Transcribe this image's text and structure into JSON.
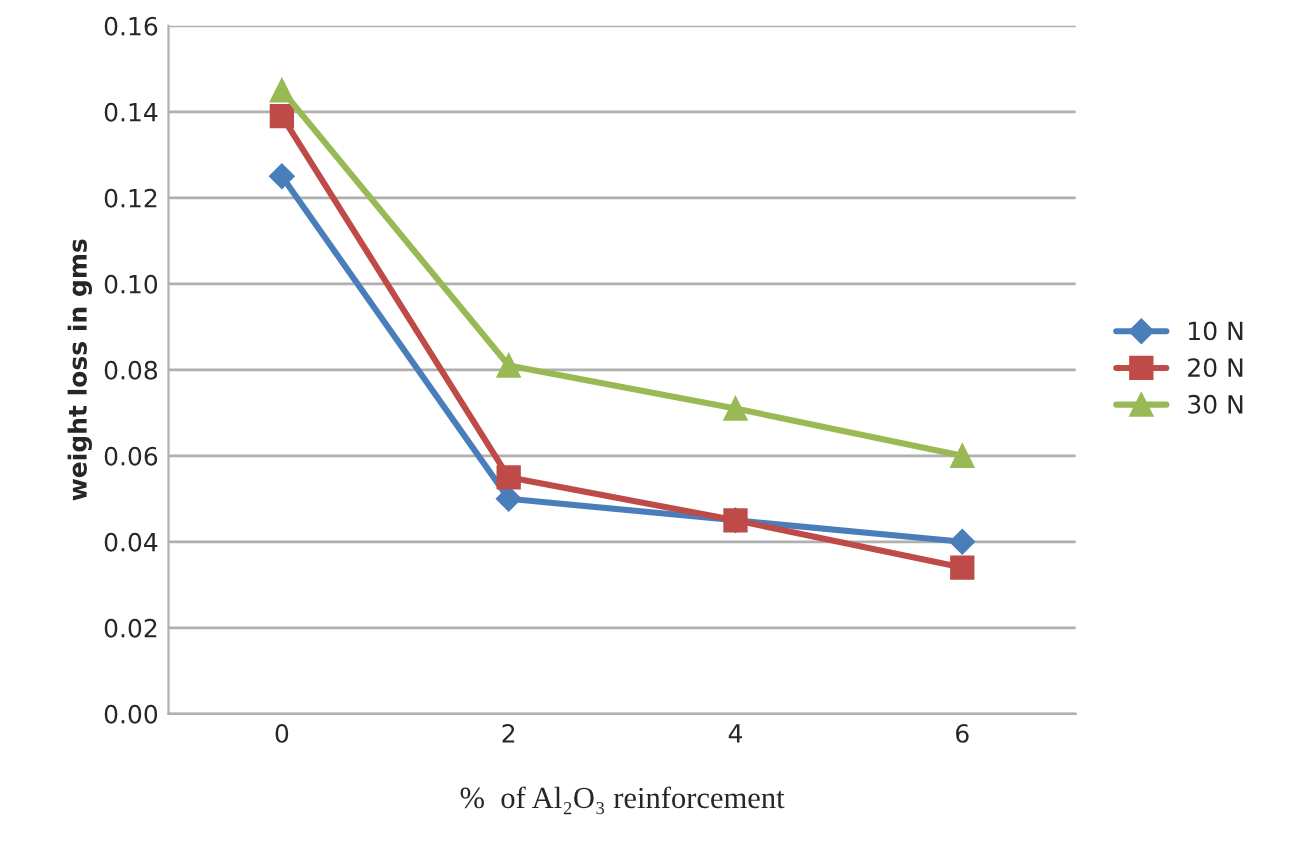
{
  "chart_data": {
    "type": "line",
    "xlabel": "%  of Al₂O₃ reinforcement",
    "ylabel": "weight loss in gms",
    "categories": [
      "0",
      "2",
      "4",
      "6"
    ],
    "series": [
      {
        "name": "10 N",
        "color": "#4a7ebb",
        "marker": "diamond",
        "values": [
          0.125,
          0.05,
          0.045,
          0.04
        ]
      },
      {
        "name": "20 N",
        "color": "#be4b48",
        "marker": "square",
        "values": [
          0.139,
          0.055,
          0.045,
          0.034
        ]
      },
      {
        "name": "30 N",
        "color": "#98b954",
        "marker": "triangle",
        "values": [
          0.145,
          0.081,
          0.071,
          0.06
        ]
      }
    ],
    "ylim": [
      0,
      0.16
    ],
    "yticks": [
      {
        "value": 0,
        "label": "0.00"
      },
      {
        "value": 0.02,
        "label": "0.02"
      },
      {
        "value": 0.04,
        "label": "0.04"
      },
      {
        "value": 0.06,
        "label": "0.06"
      },
      {
        "value": 0.08,
        "label": "0.08"
      },
      {
        "value": 0.1,
        "label": "0.10"
      },
      {
        "value": 0.12,
        "label": "0.12"
      },
      {
        "value": 0.14,
        "label": "0.14"
      },
      {
        "value": 0.16,
        "label": "0.16"
      }
    ],
    "grid": "y",
    "legend": "right",
    "line_style": "solid"
  }
}
